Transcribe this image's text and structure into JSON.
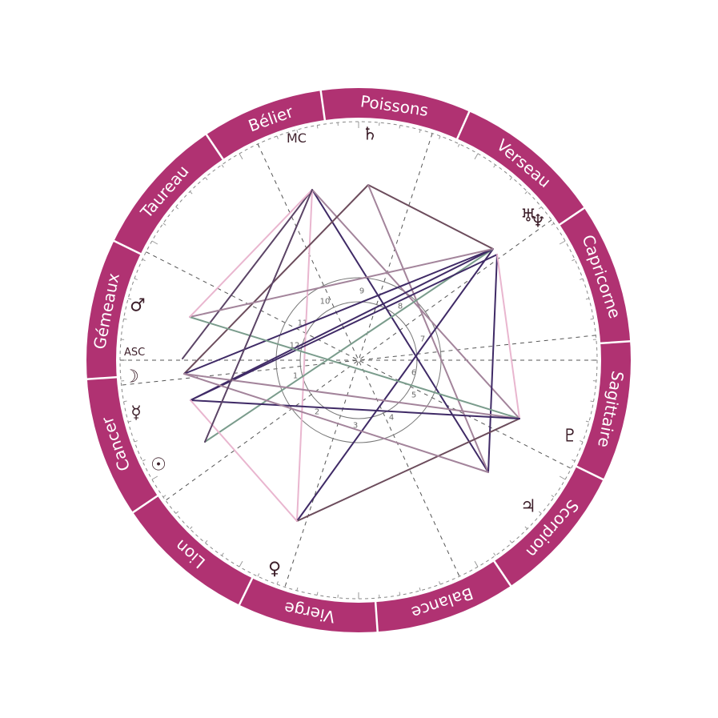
{
  "colors": {
    "ring": "#b03272",
    "ring_divider": "#ffffff",
    "sign_text": "#ffffff",
    "cusp_line": "#555555",
    "glyph": "#3d1f2a",
    "aspects": [
      "#5b4466",
      "#3f2a66",
      "#a3849b",
      "#e9b6cf",
      "#7a9c8c",
      "#6c4c5c"
    ]
  },
  "signs": [
    {
      "name": "Poissons",
      "icon": "pisces"
    },
    {
      "name": "Verseau",
      "icon": "aquarius"
    },
    {
      "name": "Capricorne",
      "icon": "capricorn"
    },
    {
      "name": "Sagittaire",
      "icon": "sagittarius"
    },
    {
      "name": "Scorpion",
      "icon": "scorpio"
    },
    {
      "name": "Balance",
      "icon": "libra"
    },
    {
      "name": "Vierge",
      "icon": "virgo"
    },
    {
      "name": "Lion",
      "icon": "leo"
    },
    {
      "name": "Cancer",
      "icon": "cancer"
    },
    {
      "name": "Gémeaux",
      "icon": "gemini"
    },
    {
      "name": "Taureau",
      "icon": "taurus"
    },
    {
      "name": "Bélier",
      "icon": "aries"
    }
  ],
  "axes": {
    "asc": "ASC",
    "mc": "MC"
  },
  "houses": [
    "1",
    "2",
    "3",
    "4",
    "5",
    "6",
    "7",
    "8",
    "9",
    "10",
    "11",
    "12"
  ],
  "planets": [
    {
      "id": "saturn",
      "glyph": "♄",
      "icon": "saturn-icon"
    },
    {
      "id": "uranus",
      "glyph": "♅",
      "icon": "uranus-icon"
    },
    {
      "id": "neptune",
      "glyph": "♆",
      "icon": "neptune-icon"
    },
    {
      "id": "pluto",
      "glyph": "♇",
      "icon": "pluto-icon"
    },
    {
      "id": "jupiter",
      "glyph": "♃",
      "icon": "jupiter-icon"
    },
    {
      "id": "venus",
      "glyph": "♀",
      "icon": "venus-icon"
    },
    {
      "id": "sun",
      "glyph": "☉",
      "icon": "sun-icon"
    },
    {
      "id": "mercury",
      "glyph": "☿",
      "icon": "mercury-icon"
    },
    {
      "id": "moon",
      "glyph": "☽",
      "icon": "moon-icon"
    },
    {
      "id": "mars",
      "glyph": "♂",
      "icon": "mars-icon"
    }
  ]
}
